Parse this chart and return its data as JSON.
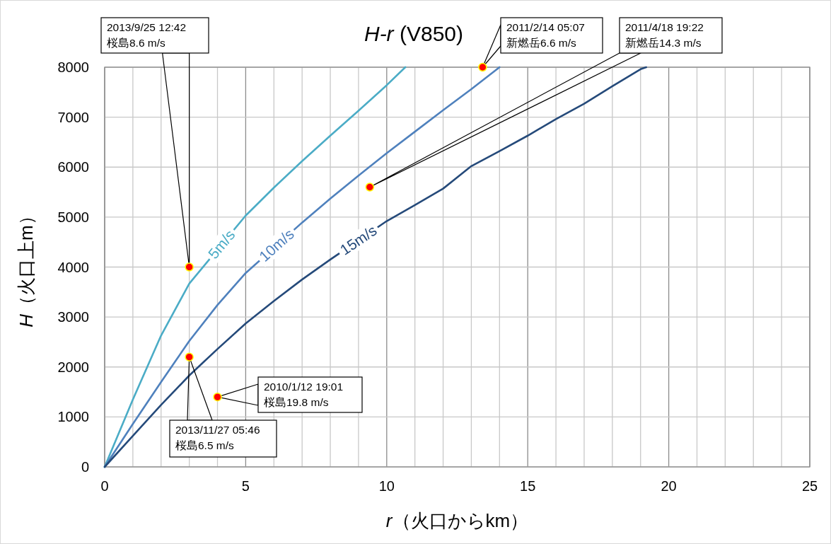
{
  "chart_data": {
    "type": "line",
    "title": "H-r (V850)",
    "xlabel": "r（火口からkm）",
    "ylabel": "H（火口上m）",
    "xlim": [
      0,
      25
    ],
    "xticks": [
      0,
      5,
      10,
      15,
      20,
      25
    ],
    "ylim": [
      0,
      8000
    ],
    "yticks": [
      0,
      1000,
      2000,
      3000,
      4000,
      5000,
      6000,
      7000,
      8000
    ],
    "grid": true,
    "series": [
      {
        "name": "5m/s",
        "color": "#4bacc6",
        "x": [
          0,
          1,
          2,
          3,
          5,
          6,
          7,
          8,
          9,
          10,
          10.66
        ],
        "values": [
          0,
          1350,
          2630,
          3670,
          5030,
          5590,
          6120,
          6630,
          7130,
          7640,
          8000
        ]
      },
      {
        "name": "10m/s",
        "color": "#4f81bd",
        "x": [
          0,
          1,
          2,
          3,
          4,
          5,
          7,
          8,
          9,
          10,
          11,
          12,
          13,
          14
        ],
        "values": [
          0,
          860,
          1700,
          2520,
          3240,
          3880,
          4890,
          5370,
          5830,
          6280,
          6710,
          7140,
          7560,
          8000
        ]
      },
      {
        "name": "15m/s",
        "color": "#254a7a",
        "x": [
          0,
          1,
          2,
          3,
          4,
          5,
          6,
          7,
          8,
          10,
          11,
          12,
          13,
          14,
          15,
          16,
          17,
          18,
          19,
          19.2
        ],
        "values": [
          0,
          620,
          1240,
          1830,
          2360,
          2870,
          3320,
          3750,
          4150,
          4920,
          5240,
          5570,
          6020,
          6320,
          6630,
          6960,
          7270,
          7620,
          7960,
          8000
        ]
      },
      {
        "type": "scatter",
        "color": "#ff0000",
        "marker": "circle",
        "x": [
          3,
          13.4,
          9.4,
          4,
          3
        ],
        "values": [
          4000,
          8000,
          5600,
          1400,
          2200
        ]
      }
    ],
    "annotations": [
      "2013/9/25  12:42\n桜島8.6 m/s",
      "2011/2/14 05:07\n新燃岳6.6 m/s",
      "2011/4/18 19:22\n新燃岳14.3 m/s",
      "2010/1/12  19:01\n桜島19.8 m/s",
      "2013/11/27 05:46\n桜島6.5 m/s"
    ]
  }
}
